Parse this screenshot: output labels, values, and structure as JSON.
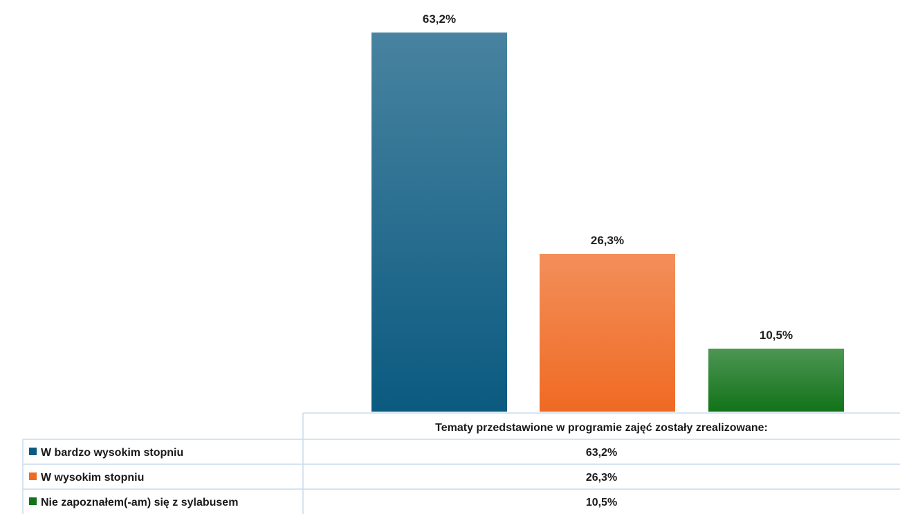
{
  "chart_data": {
    "type": "bar",
    "categories": [
      "Tematy przedstawione w programie zajęć zostały zrealizowane:"
    ],
    "series": [
      {
        "name": "W bardzo wysokim stopniu",
        "values": [
          63.2
        ],
        "label": "63,2%",
        "color": "#0b5a80"
      },
      {
        "name": "W wysokim  stopniu",
        "values": [
          26.3
        ],
        "label": "26,3%",
        "color": "#ef6a23"
      },
      {
        "name": "Nie zapoznałem(-am) się z sylabusem",
        "values": [
          10.5
        ],
        "label": "10,5%",
        "color": "#127319"
      }
    ],
    "ylim": [
      0,
      63.2
    ],
    "grid": false,
    "legend": "data-table"
  }
}
